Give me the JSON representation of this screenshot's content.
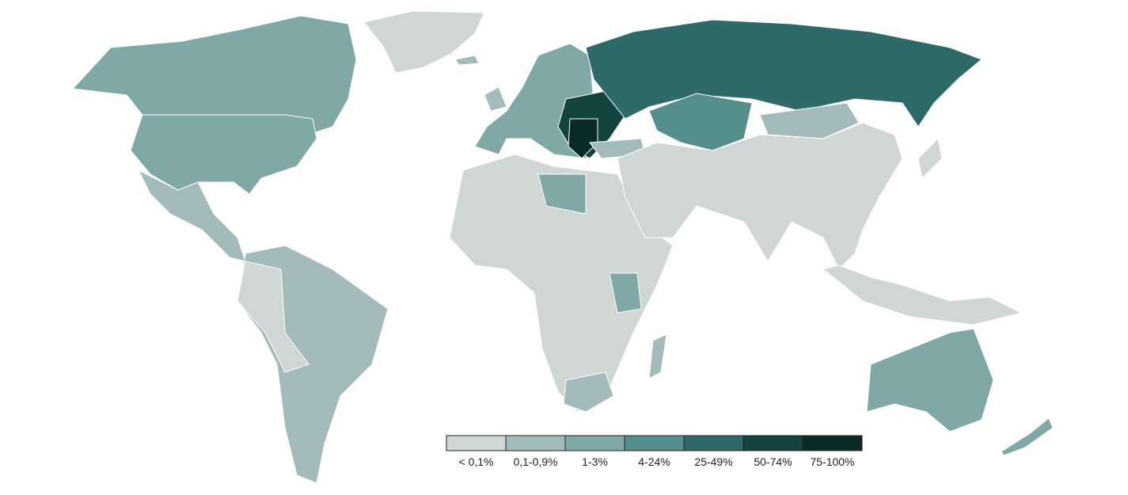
{
  "legend": {
    "items": [
      {
        "label": "< 0,1%",
        "color": "#cfd6d4"
      },
      {
        "label": "0,1-0,9%",
        "color": "#a3bcbb"
      },
      {
        "label": "1-3%",
        "color": "#7fa8a7"
      },
      {
        "label": "4-24%",
        "color": "#558f8b"
      },
      {
        "label": "25-49%",
        "color": "#2e6b68"
      },
      {
        "label": "50-74%",
        "color": "#12433f"
      },
      {
        "label": "75-100%",
        "color": "#082b28"
      }
    ]
  }
}
